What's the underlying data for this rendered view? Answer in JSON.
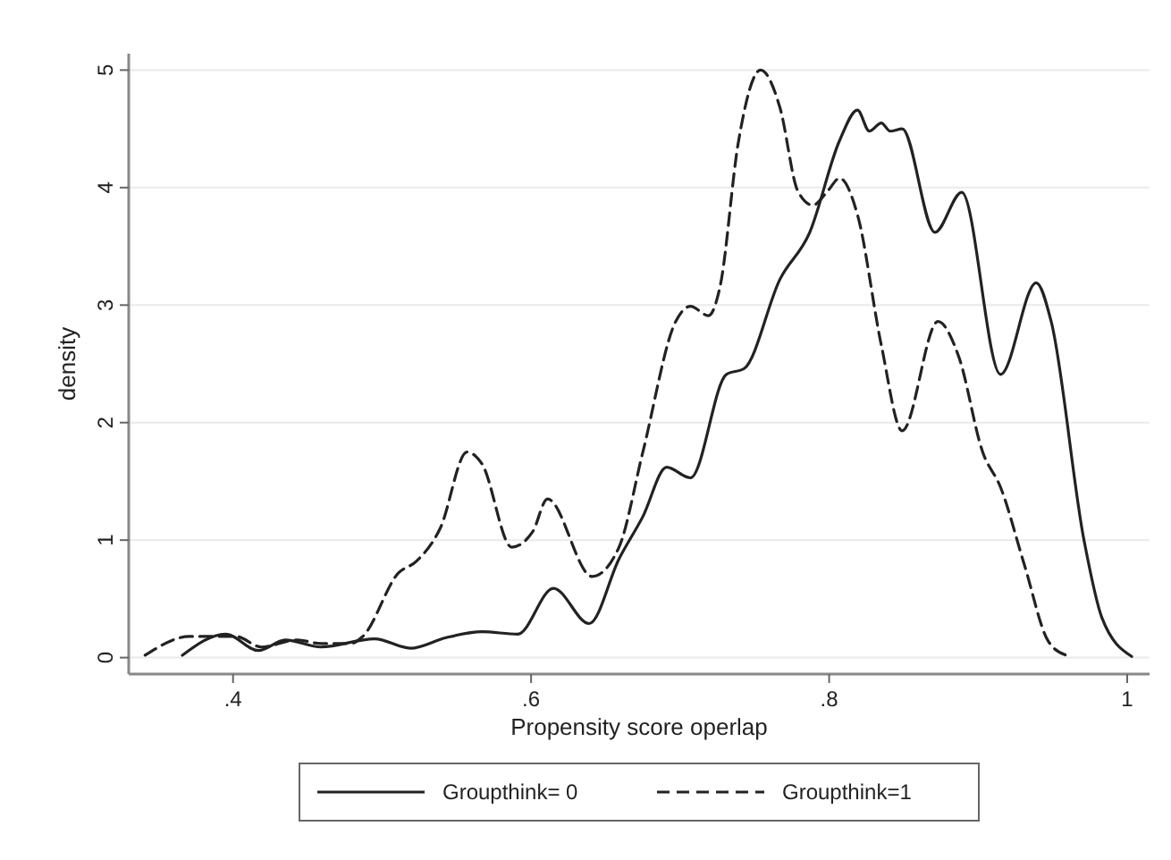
{
  "chart_data": {
    "type": "line",
    "xlabel": "Propensity score operlap",
    "ylabel": "density",
    "xlim": [
      0.33,
      1.015
    ],
    "ylim": [
      -0.14,
      5.14
    ],
    "xticks": [
      {
        "value": 0.4,
        "label": ".4"
      },
      {
        "value": 0.6,
        "label": ".6"
      },
      {
        "value": 0.8,
        "label": ".8"
      },
      1
    ],
    "yticks": [
      0,
      1,
      2,
      3,
      4,
      5
    ],
    "grid": "y",
    "legend": "bottom",
    "series": [
      {
        "name": "Groupthink= 0",
        "color": "#222222",
        "line_style": "solid",
        "x": [
          0.366,
          0.395,
          0.417,
          0.435,
          0.459,
          0.495,
          0.519,
          0.543,
          0.567,
          0.591,
          0.615,
          0.639,
          0.659,
          0.675,
          0.691,
          0.707,
          0.731,
          0.743,
          0.767,
          0.787,
          0.807,
          0.819,
          0.827,
          0.835,
          0.841,
          0.849,
          0.871,
          0.889,
          0.915,
          0.939,
          0.949,
          0.971,
          0.983,
          1.003
        ],
        "values": [
          0.02,
          0.2,
          0.06,
          0.15,
          0.09,
          0.16,
          0.08,
          0.17,
          0.22,
          0.2,
          0.59,
          0.29,
          0.84,
          1.2,
          1.62,
          1.53,
          2.41,
          2.46,
          3.22,
          3.62,
          4.4,
          4.66,
          4.48,
          4.55,
          4.48,
          4.5,
          3.62,
          3.96,
          2.41,
          3.19,
          2.86,
          1.0,
          0.34,
          0.01
        ]
      },
      {
        "name": "Groupthink=1",
        "color": "#222222",
        "line_style": "dashed",
        "x": [
          0.341,
          0.371,
          0.402,
          0.419,
          0.443,
          0.459,
          0.479,
          0.487,
          0.511,
          0.523,
          0.539,
          0.557,
          0.567,
          0.587,
          0.601,
          0.611,
          0.641,
          0.659,
          0.675,
          0.697,
          0.707,
          0.719,
          0.727,
          0.739,
          0.754,
          0.767,
          0.779,
          0.789,
          0.799,
          0.807,
          0.819,
          0.835,
          0.849,
          0.873,
          0.887,
          0.903,
          0.915,
          0.931,
          0.947,
          0.959
        ],
        "values": [
          0.02,
          0.18,
          0.18,
          0.09,
          0.15,
          0.12,
          0.12,
          0.18,
          0.72,
          0.82,
          1.1,
          1.75,
          1.65,
          0.94,
          1.07,
          1.35,
          0.69,
          0.94,
          1.75,
          2.86,
          2.99,
          2.91,
          3.17,
          4.38,
          5.0,
          4.68,
          3.97,
          3.85,
          3.97,
          4.08,
          3.77,
          2.66,
          1.93,
          2.86,
          2.56,
          1.75,
          1.45,
          0.79,
          0.14,
          0.02
        ]
      }
    ]
  }
}
